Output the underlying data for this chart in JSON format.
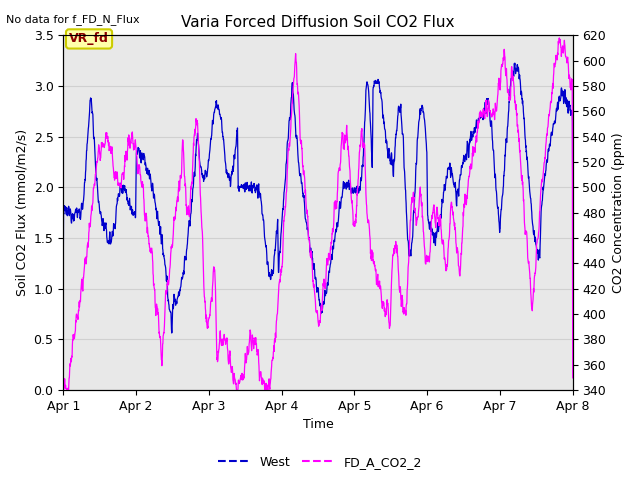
{
  "title": "Varia Forced Diffusion Soil CO2 Flux",
  "no_data_label": "No data for f_FD_N_Flux",
  "vr_fd_label": "VR_fd",
  "xlabel": "Time",
  "ylabel_left": "Soil CO2 Flux (mmol/m2/s)",
  "ylabel_right": "CO2 Concentration (ppm)",
  "ylim_left": [
    0.0,
    3.5
  ],
  "ylim_right": [
    340,
    620
  ],
  "xtick_labels": [
    "Apr 1",
    "Apr 2",
    "Apr 3",
    "Apr 4",
    "Apr 5",
    "Apr 6",
    "Apr 7",
    "Apr 8"
  ],
  "yticks_left": [
    0.0,
    0.5,
    1.0,
    1.5,
    2.0,
    2.5,
    3.0,
    3.5
  ],
  "yticks_right": [
    340,
    360,
    380,
    400,
    420,
    440,
    460,
    480,
    500,
    520,
    540,
    560,
    580,
    600,
    620
  ],
  "grid_color": "#d0d0d0",
  "bg_color": "#e8e8e8",
  "line_west_color": "#0000cc",
  "line_co2_color": "#ff00ff",
  "legend_labels": [
    "West",
    "FD_A_CO2_2"
  ],
  "vr_fd_box_color": "#ffffaa",
  "vr_fd_text_color": "#8b0000",
  "vr_fd_edge_color": "#cccc00",
  "figsize": [
    6.4,
    4.8
  ],
  "dpi": 100
}
